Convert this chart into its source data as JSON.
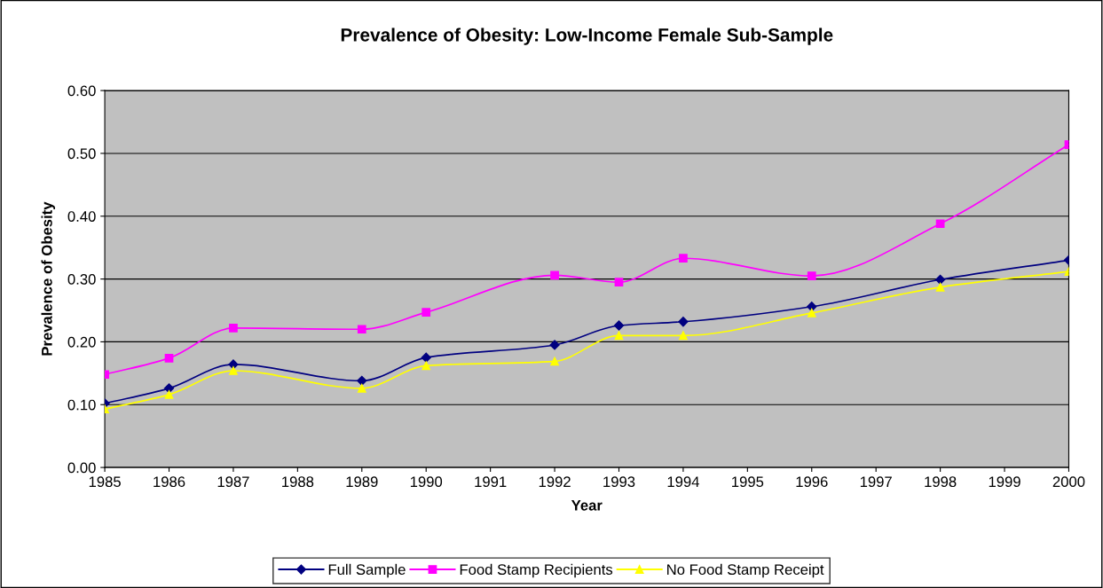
{
  "chart_data": {
    "type": "line",
    "title": "Prevalence of Obesity: Low-Income Female Sub-Sample",
    "xlabel": "Year",
    "ylabel": "Prevalence of Obesity",
    "x": [
      1985,
      1986,
      1987,
      1989,
      1990,
      1992,
      1993,
      1994,
      1996,
      1998,
      2000
    ],
    "series": [
      {
        "name": "Full Sample",
        "color": "#000080",
        "marker": "diamond",
        "values": [
          0.102,
          0.126,
          0.164,
          0.138,
          0.175,
          0.195,
          0.226,
          0.232,
          0.256,
          0.299,
          0.33
        ]
      },
      {
        "name": "Food Stamp Recipients",
        "color": "#ff00ff",
        "marker": "square",
        "values": [
          0.148,
          0.174,
          0.222,
          0.22,
          0.247,
          0.306,
          0.295,
          0.333,
          0.305,
          0.388,
          0.514
        ]
      },
      {
        "name": "No Food Stamp Receipt",
        "color": "#ffff00",
        "marker": "triangle",
        "values": [
          0.093,
          0.116,
          0.154,
          0.126,
          0.162,
          0.169,
          0.21,
          0.21,
          0.246,
          0.287,
          0.312
        ]
      }
    ],
    "xlim": [
      1985,
      2000
    ],
    "xticks": [
      1985,
      1986,
      1987,
      1988,
      1989,
      1990,
      1991,
      1992,
      1993,
      1994,
      1995,
      1996,
      1997,
      1998,
      1999,
      2000
    ],
    "ylim": [
      0,
      0.6
    ],
    "yticks": [
      {
        "value": 0,
        "label": "0.00"
      },
      {
        "value": 0.1,
        "label": "0.10"
      },
      {
        "value": 0.2,
        "label": "0.20"
      },
      {
        "value": 0.3,
        "label": "0.30"
      },
      {
        "value": 0.4,
        "label": "0.40"
      },
      {
        "value": 0.5,
        "label": "0.50"
      },
      {
        "value": 0.6,
        "label": "0.60"
      }
    ],
    "grid": "y",
    "legend": "bottom",
    "line_style": "solid"
  }
}
